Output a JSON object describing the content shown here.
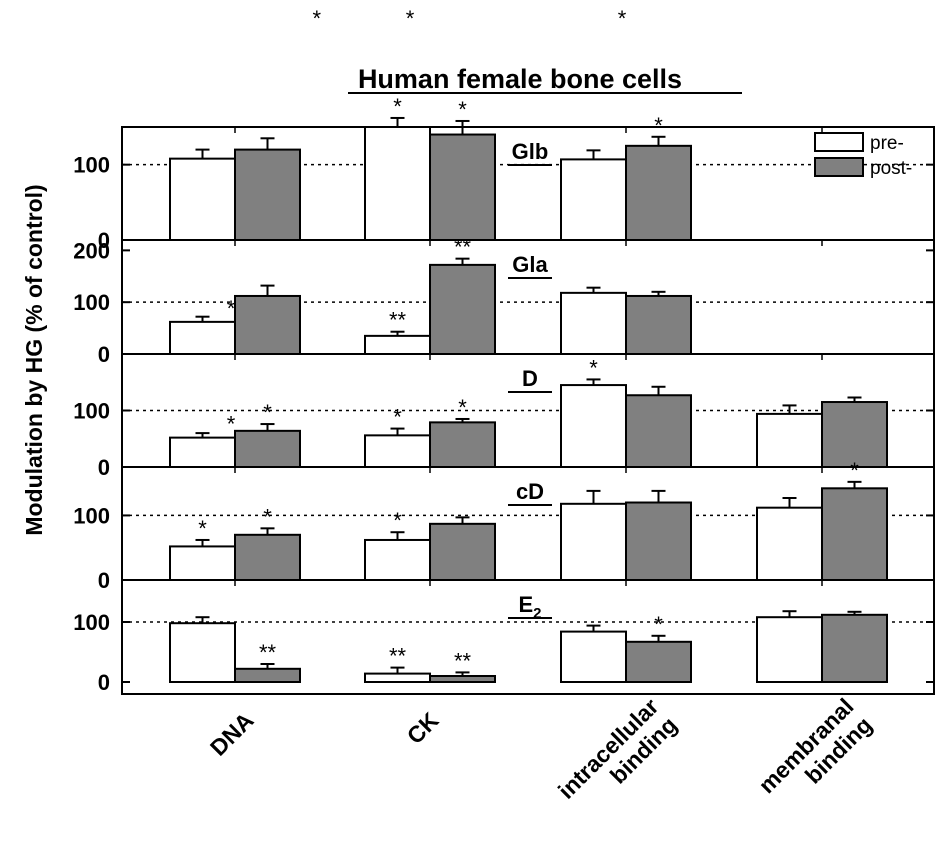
{
  "chart_data": {
    "type": "bar",
    "title": "Human female bone cells",
    "ylabel": "Modulation by HG (% of control)",
    "categories": [
      "DNA",
      "CK",
      "intracellular binding",
      "membranal binding"
    ],
    "category_lines": [
      [
        "DNA"
      ],
      [
        "CK"
      ],
      [
        "intracellular",
        "binding"
      ],
      [
        "membranal",
        "binding"
      ]
    ],
    "legend": {
      "placement": "top-right",
      "entries": [
        "pre-",
        "post-"
      ]
    },
    "colors": {
      "pre": "#ffffff",
      "post": "#808080",
      "edge": "#000000"
    },
    "reference_line": 100,
    "top_stars": [
      {
        "category_index": 0.56,
        "text": "*"
      },
      {
        "category_index": 1.0,
        "text": "*"
      },
      {
        "category_index": 2.0,
        "text": "*"
      }
    ],
    "panels": [
      {
        "label": "Glb",
        "label_sub": "",
        "ylim": [
          0,
          150
        ],
        "yticks": [
          0,
          100
        ],
        "pre": [
          {
            "value": 108,
            "err": 12,
            "sig": ""
          },
          {
            "value": 150,
            "err": 12,
            "sig": "*"
          },
          {
            "value": 107,
            "err": 12,
            "sig": ""
          },
          null
        ],
        "post": [
          {
            "value": 120,
            "err": 15,
            "sig": ""
          },
          {
            "value": 140,
            "err": 18,
            "sig": "*"
          },
          {
            "value": 125,
            "err": 12,
            "sig": "*"
          },
          null
        ]
      },
      {
        "label": "Gla",
        "label_sub": "",
        "ylim": [
          0,
          220
        ],
        "yticks": [
          0,
          100,
          200
        ],
        "pre": [
          {
            "value": 62,
            "err": 10,
            "sig": "*"
          },
          {
            "value": 35,
            "err": 8,
            "sig": "**"
          },
          {
            "value": 118,
            "err": 10,
            "sig": ""
          },
          null
        ],
        "post": [
          {
            "value": 112,
            "err": 20,
            "sig": ""
          },
          {
            "value": 172,
            "err": 12,
            "sig": "**"
          },
          {
            "value": 112,
            "err": 8,
            "sig": ""
          },
          null
        ]
      },
      {
        "label": "D",
        "label_sub": "",
        "ylim": [
          0,
          200
        ],
        "yticks": [
          0,
          100
        ],
        "pre": [
          {
            "value": 52,
            "err": 8,
            "sig": "*"
          },
          {
            "value": 56,
            "err": 12,
            "sig": "*"
          },
          {
            "value": 145,
            "err": 10,
            "sig": "*"
          },
          {
            "value": 94,
            "err": 15,
            "sig": ""
          }
        ],
        "post": [
          {
            "value": 64,
            "err": 12,
            "sig": "*"
          },
          {
            "value": 79,
            "err": 6,
            "sig": "*"
          },
          {
            "value": 127,
            "err": 15,
            "sig": ""
          },
          {
            "value": 115,
            "err": 8,
            "sig": ""
          }
        ]
      },
      {
        "label": "cD",
        "label_sub": "",
        "ylim": [
          0,
          175
        ],
        "yticks": [
          0,
          100
        ],
        "pre": [
          {
            "value": 52,
            "err": 10,
            "sig": "*"
          },
          {
            "value": 62,
            "err": 12,
            "sig": "*"
          },
          {
            "value": 118,
            "err": 20,
            "sig": ""
          },
          {
            "value": 112,
            "err": 15,
            "sig": ""
          }
        ],
        "post": [
          {
            "value": 70,
            "err": 10,
            "sig": "*"
          },
          {
            "value": 87,
            "err": 10,
            "sig": ""
          },
          {
            "value": 120,
            "err": 18,
            "sig": ""
          },
          {
            "value": 142,
            "err": 10,
            "sig": "*"
          }
        ]
      },
      {
        "label": "E",
        "label_sub": "2",
        "ylim": [
          -20,
          170
        ],
        "yticks": [
          0,
          100
        ],
        "pre": [
          {
            "value": 98,
            "err": 10,
            "sig": ""
          },
          {
            "value": 14,
            "err": 10,
            "sig": "**"
          },
          {
            "value": 84,
            "err": 10,
            "sig": ""
          },
          {
            "value": 108,
            "err": 10,
            "sig": ""
          }
        ],
        "post": [
          {
            "value": 22,
            "err": 8,
            "sig": "**"
          },
          {
            "value": 10,
            "err": 6,
            "sig": "**"
          },
          {
            "value": 67,
            "err": 10,
            "sig": "*"
          },
          {
            "value": 112,
            "err": 5,
            "sig": ""
          }
        ]
      }
    ]
  }
}
